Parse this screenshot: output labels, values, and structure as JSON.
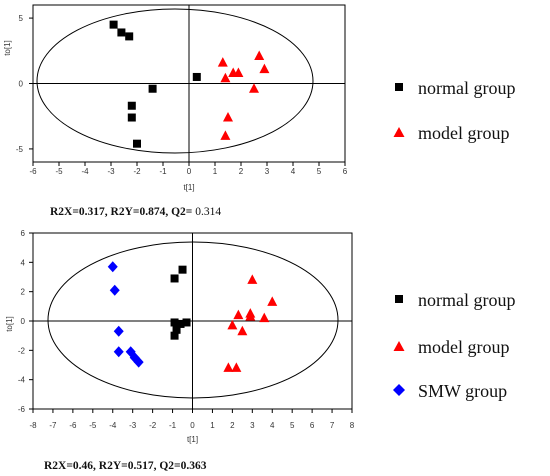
{
  "charts": [
    {
      "type": "scatter",
      "xlabel": "t[1]",
      "ylabel": "to[1]",
      "xlim": [
        -6,
        6
      ],
      "ylim": [
        -6,
        6
      ],
      "xticks": [
        -6,
        -5,
        -4,
        -3,
        -2,
        -1,
        0,
        1,
        2,
        3,
        4,
        5,
        6
      ],
      "yticks": [
        -5,
        0,
        5
      ],
      "stats": {
        "main": "R2X=0.317, R2Y=0.874, Q2=",
        "tail": " 0.314"
      },
      "series": [
        {
          "name": "normal group",
          "marker": "square",
          "color": "#000000",
          "points": [
            [
              -2.9,
              4.5
            ],
            [
              -2.6,
              3.9
            ],
            [
              -2.3,
              3.6
            ],
            [
              -1.4,
              -0.4
            ],
            [
              -2.2,
              -1.7
            ],
            [
              -2.2,
              -2.6
            ],
            [
              -2.0,
              -4.6
            ],
            [
              0.3,
              0.5
            ]
          ]
        },
        {
          "name": "model group",
          "marker": "triangle",
          "color": "#ff0000",
          "points": [
            [
              1.3,
              1.6
            ],
            [
              1.4,
              0.4
            ],
            [
              1.7,
              0.8
            ],
            [
              1.9,
              0.8
            ],
            [
              2.7,
              2.1
            ],
            [
              2.9,
              1.1
            ],
            [
              2.5,
              -0.4
            ],
            [
              1.5,
              -2.6
            ],
            [
              1.4,
              -4.0
            ]
          ]
        }
      ]
    },
    {
      "type": "scatter",
      "xlabel": "t[1]",
      "ylabel": "to[1]",
      "xlim": [
        -8,
        8
      ],
      "ylim": [
        -6,
        6
      ],
      "xticks": [
        -8,
        -7,
        -6,
        -5,
        -4,
        -3,
        -2,
        -1,
        0,
        1,
        2,
        3,
        4,
        5,
        6,
        7,
        8
      ],
      "yticks": [
        -6,
        -4,
        -2,
        0,
        2,
        4,
        6
      ],
      "stats": {
        "main": "R2X=0.46, R2Y=0.517, Q2=0.363",
        "tail": ""
      },
      "series": [
        {
          "name": "normal group",
          "marker": "square",
          "color": "#000000",
          "points": [
            [
              -0.9,
              2.9
            ],
            [
              -0.5,
              3.5
            ],
            [
              -0.9,
              -0.1
            ],
            [
              -0.6,
              -0.2
            ],
            [
              -0.3,
              -0.1
            ],
            [
              -0.8,
              -0.6
            ],
            [
              -0.9,
              -1.0
            ]
          ]
        },
        {
          "name": "model group",
          "marker": "triangle",
          "color": "#ff0000",
          "points": [
            [
              3.0,
              2.8
            ],
            [
              2.9,
              0.5
            ],
            [
              2.9,
              0.3
            ],
            [
              2.3,
              0.4
            ],
            [
              2.0,
              -0.3
            ],
            [
              2.5,
              -0.7
            ],
            [
              3.6,
              0.2
            ],
            [
              4.0,
              1.3
            ],
            [
              1.8,
              -3.2
            ],
            [
              2.2,
              -3.2
            ]
          ]
        },
        {
          "name": "SMW group",
          "marker": "diamond",
          "color": "#0000ff",
          "points": [
            [
              -4.0,
              3.7
            ],
            [
              -3.9,
              2.1
            ],
            [
              -3.7,
              -0.7
            ],
            [
              -3.7,
              -2.1
            ],
            [
              -3.1,
              -2.1
            ],
            [
              -2.9,
              -2.5
            ],
            [
              -2.7,
              -2.8
            ]
          ]
        }
      ]
    }
  ],
  "legends": [
    {
      "items": [
        {
          "label": "normal group",
          "marker": "square",
          "color": "#000000"
        },
        {
          "label": "model group",
          "marker": "triangle",
          "color": "#ff0000"
        }
      ]
    },
    {
      "items": [
        {
          "label": "normal group",
          "marker": "square",
          "color": "#000000"
        },
        {
          "label": "model group",
          "marker": "triangle",
          "color": "#ff0000"
        },
        {
          "label": "SMW  group",
          "marker": "diamond",
          "color": "#0000ff"
        }
      ]
    }
  ]
}
